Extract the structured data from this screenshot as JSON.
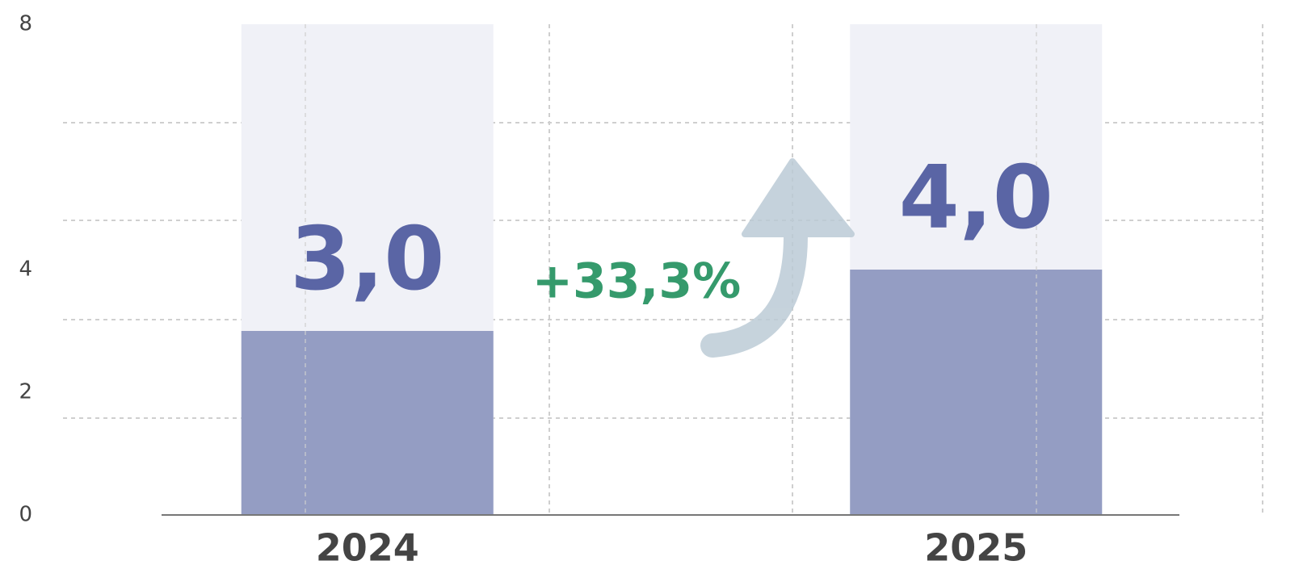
{
  "chart_data": {
    "type": "bar",
    "categories": [
      "2024",
      "2025"
    ],
    "values": [
      3.0,
      4.0
    ],
    "value_labels": [
      "3,0",
      "4,0"
    ],
    "color": "#949dc3",
    "ylim": [
      0,
      8
    ],
    "yticks": [
      0,
      2,
      4,
      8
    ],
    "annotation": "+33,3%"
  }
}
